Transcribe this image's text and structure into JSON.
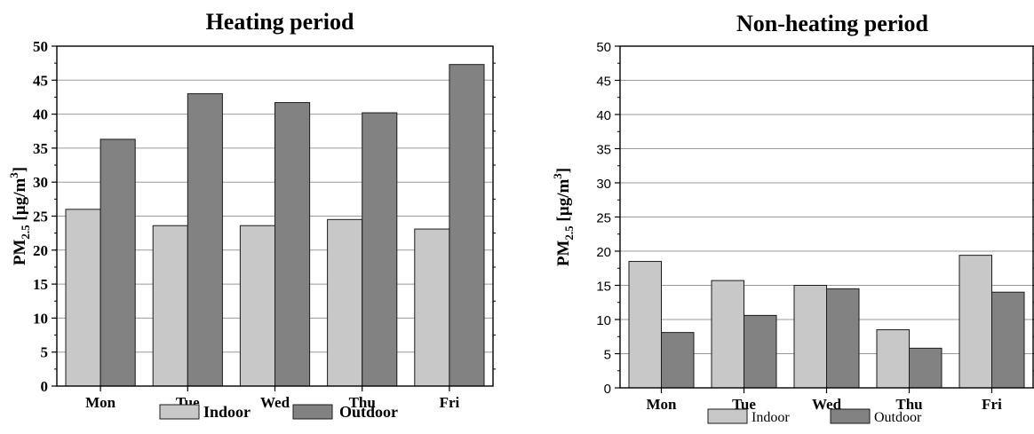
{
  "chart_data": [
    {
      "type": "bar",
      "title": "Heating period",
      "ylabel": {
        "main": "PM",
        "sub": "2.5",
        "unit_open": " [µg/m",
        "sup": "3",
        "unit_close": "]"
      },
      "xlabel": "",
      "categories": [
        "Mon",
        "Tue",
        "Wed",
        "Thu",
        "Fri"
      ],
      "ylim": [
        0,
        50
      ],
      "yticks": [
        "0",
        "5",
        "10",
        "15",
        "20",
        "25",
        "30",
        "35",
        "40",
        "45",
        "50"
      ],
      "grid": true,
      "legend": "bottom",
      "series": [
        {
          "name": "Indoor",
          "color": "#c8c8c8",
          "values": [
            26.0,
            23.6,
            23.6,
            24.5,
            23.1
          ]
        },
        {
          "name": "Outdoor",
          "color": "#828282",
          "values": [
            36.3,
            43.0,
            41.7,
            40.2,
            47.3
          ]
        }
      ]
    },
    {
      "type": "bar",
      "title": "Non-heating period",
      "ylabel": {
        "main": "PM",
        "sub": "2.5",
        "unit_open": " [µg/m",
        "sup": "3",
        "unit_close": "]"
      },
      "xlabel": "",
      "categories": [
        "Mon",
        "Tue",
        "Wed",
        "Thu",
        "Fri"
      ],
      "ylim": [
        0,
        50
      ],
      "yticks": [
        "0",
        "5",
        "10",
        "15",
        "20",
        "25",
        "30",
        "35",
        "40",
        "45",
        "50"
      ],
      "grid": true,
      "legend": "bottom",
      "series": [
        {
          "name": "Indoor",
          "color": "#c8c8c8",
          "values": [
            18.5,
            15.7,
            15.0,
            8.5,
            19.4
          ]
        },
        {
          "name": "Outdoor",
          "color": "#828282",
          "values": [
            8.1,
            10.6,
            14.5,
            5.8,
            14.0
          ]
        }
      ]
    }
  ]
}
